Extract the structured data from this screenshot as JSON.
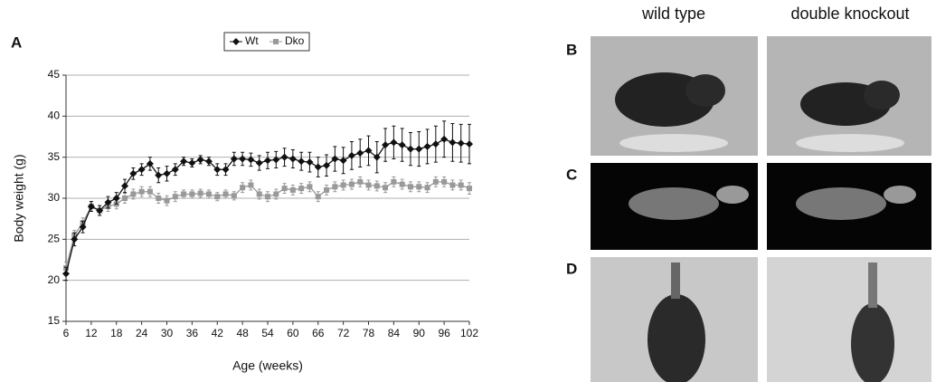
{
  "chart_data": {
    "type": "line",
    "panel_label": "A",
    "x_label": "Age (weeks)",
    "y_label": "Body weight (g)",
    "x": [
      6,
      8,
      10,
      12,
      14,
      16,
      18,
      20,
      22,
      24,
      26,
      28,
      30,
      32,
      34,
      36,
      38,
      40,
      42,
      44,
      46,
      48,
      50,
      52,
      54,
      56,
      58,
      60,
      62,
      64,
      66,
      68,
      70,
      72,
      74,
      76,
      78,
      80,
      82,
      84,
      86,
      88,
      90,
      92,
      94,
      96,
      98,
      100,
      102
    ],
    "series": [
      {
        "name": "Wt",
        "color": "#111111",
        "marker": "diamond",
        "values": [
          20.8,
          25,
          26.5,
          29,
          28.5,
          29.5,
          30,
          31.5,
          33,
          33.5,
          34.2,
          32.8,
          33,
          33.5,
          34.5,
          34.3,
          34.7,
          34.5,
          33.5,
          33.5,
          34.8,
          34.8,
          34.7,
          34.3,
          34.6,
          34.7,
          35,
          34.8,
          34.5,
          34.4,
          33.8,
          34,
          34.8,
          34.6,
          35.2,
          35.5,
          35.8,
          35,
          36.5,
          36.8,
          36.5,
          36,
          36,
          36.3,
          36.6,
          37.2,
          36.8,
          36.7,
          36.6
        ],
        "errors": [
          0.8,
          0.8,
          0.7,
          0.6,
          0.6,
          0.7,
          0.7,
          0.8,
          0.7,
          0.7,
          0.8,
          0.9,
          0.9,
          0.7,
          0.5,
          0.5,
          0.5,
          0.5,
          0.7,
          0.7,
          0.8,
          0.8,
          0.8,
          0.9,
          1,
          1,
          1.1,
          1.1,
          1.1,
          1.2,
          1.2,
          1.3,
          1.5,
          1.6,
          1.7,
          1.7,
          1.8,
          1.9,
          2,
          2,
          2,
          2,
          2.1,
          2.1,
          2.2,
          2.2,
          2.3,
          2.3,
          2.4
        ]
      },
      {
        "name": "Dko",
        "color": "#999999",
        "marker": "square",
        "values": [
          21.5,
          25.5,
          27,
          29,
          28.5,
          29,
          29.3,
          30,
          30.5,
          30.8,
          30.8,
          30,
          29.7,
          30.2,
          30.5,
          30.5,
          30.6,
          30.5,
          30.2,
          30.5,
          30.3,
          31.3,
          31.6,
          30.5,
          30.2,
          30.5,
          31.2,
          31,
          31.2,
          31.4,
          30.2,
          31,
          31.4,
          31.6,
          31.7,
          32,
          31.6,
          31.5,
          31.3,
          32,
          31.7,
          31.4,
          31.4,
          31.3,
          32,
          32,
          31.6,
          31.6,
          31.2
        ],
        "errors": [
          0.7,
          0.6,
          0.6,
          0.6,
          0.6,
          0.6,
          0.6,
          0.6,
          0.6,
          0.6,
          0.6,
          0.6,
          0.6,
          0.6,
          0.5,
          0.5,
          0.5,
          0.5,
          0.5,
          0.5,
          0.5,
          0.6,
          0.6,
          0.6,
          0.6,
          0.6,
          0.6,
          0.6,
          0.6,
          0.6,
          0.6,
          0.6,
          0.6,
          0.6,
          0.6,
          0.6,
          0.6,
          0.6,
          0.6,
          0.6,
          0.6,
          0.6,
          0.6,
          0.6,
          0.6,
          0.6,
          0.6,
          0.6,
          0.7
        ]
      }
    ],
    "xlim": [
      6,
      102
    ],
    "xticks": [
      6,
      12,
      18,
      24,
      30,
      36,
      42,
      48,
      54,
      60,
      66,
      72,
      78,
      84,
      90,
      96,
      102
    ],
    "ylim": [
      15,
      45
    ],
    "yticks": [
      15,
      20,
      25,
      30,
      35,
      40,
      45
    ],
    "grid": true,
    "legend": "top"
  },
  "photo_panels": {
    "columns": [
      "wild type",
      "double knockout"
    ],
    "rows": [
      "B",
      "C",
      "D"
    ]
  }
}
